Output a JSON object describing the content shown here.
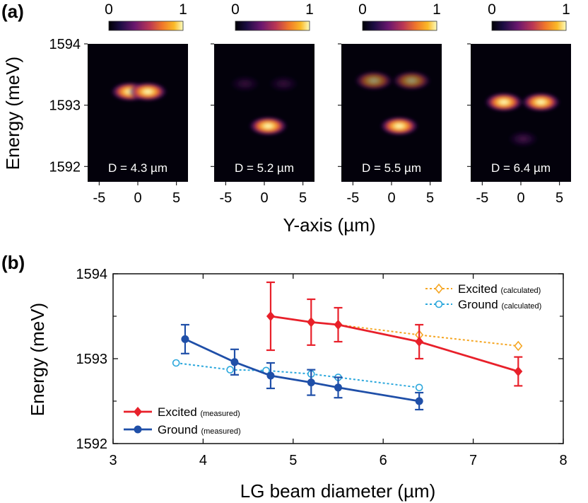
{
  "panel_labels": {
    "a": "(a)",
    "b": "(b)"
  },
  "panel_a": {
    "ylabel": "Energy (meV)",
    "xlabel": "Y-axis (µm)",
    "y_ticks": [
      "1594",
      "1593",
      "1592"
    ],
    "x_ticks": [
      "-5",
      "0",
      "5"
    ],
    "colorbar_ticks": [
      "0",
      "1"
    ],
    "maps": [
      {
        "label": "D = 4.3 µm",
        "spots": [
          {
            "y": -1.0,
            "e": 1593.22,
            "amp": 1.0
          },
          {
            "y": 1.3,
            "e": 1593.22,
            "amp": 1.0
          }
        ]
      },
      {
        "label": "D = 5.2 µm",
        "spots": [
          {
            "y": 0.5,
            "e": 1592.66,
            "amp": 1.0
          },
          {
            "y": -2.5,
            "e": 1593.35,
            "amp": 0.15
          },
          {
            "y": 2.5,
            "e": 1593.35,
            "amp": 0.15
          }
        ]
      },
      {
        "label": "D = 5.5 µm",
        "spots": [
          {
            "y": 1.0,
            "e": 1592.66,
            "amp": 1.0
          },
          {
            "y": -2.3,
            "e": 1593.4,
            "amp": 0.6
          },
          {
            "y": 2.6,
            "e": 1593.4,
            "amp": 0.6
          }
        ]
      },
      {
        "label": "D = 6.4 µm",
        "spots": [
          {
            "y": -2.2,
            "e": 1593.05,
            "amp": 1.0
          },
          {
            "y": 2.6,
            "e": 1593.05,
            "amp": 1.0
          },
          {
            "y": 0.3,
            "e": 1592.45,
            "amp": 0.2
          }
        ]
      }
    ]
  },
  "chart_data": {
    "type": "line",
    "xlabel": "LG beam diameter (µm)",
    "ylabel": "Energy (meV)",
    "xlim": [
      3,
      8
    ],
    "ylim": [
      1592,
      1594
    ],
    "x_ticks": [
      "3",
      "4",
      "5",
      "6",
      "7",
      "8"
    ],
    "y_ticks": [
      "1592",
      "1593",
      "1594"
    ],
    "legend_placement": [
      "top-right",
      "bottom-left"
    ],
    "series": [
      {
        "name": "Excited",
        "name_suffix": "(measured)",
        "color": "#e8202a",
        "marker": "diamond",
        "line": "solid",
        "x": [
          4.75,
          5.2,
          5.5,
          6.4,
          7.5
        ],
        "y": [
          1593.5,
          1593.43,
          1593.4,
          1593.2,
          1592.85
        ],
        "err": [
          0.4,
          0.27,
          0.2,
          0.2,
          0.17
        ]
      },
      {
        "name": "Ground",
        "name_suffix": "(measured)",
        "color": "#1f4fa8",
        "marker": "circle",
        "line": "solid",
        "x": [
          3.8,
          4.35,
          4.75,
          5.2,
          5.5,
          6.4
        ],
        "y": [
          1593.23,
          1592.96,
          1592.8,
          1592.72,
          1592.66,
          1592.5
        ],
        "err": [
          0.17,
          0.15,
          0.15,
          0.15,
          0.12,
          0.1
        ]
      },
      {
        "name": "Excited",
        "name_suffix": "(calculated)",
        "color": "#f5a623",
        "marker": "open-diamond",
        "line": "dotted",
        "x": [
          5.2,
          5.5,
          6.4,
          7.5
        ],
        "y": [
          1593.43,
          1593.4,
          1593.28,
          1593.15
        ]
      },
      {
        "name": "Ground",
        "name_suffix": "(calculated)",
        "color": "#2aa7dc",
        "marker": "open-circle",
        "line": "dotted",
        "x": [
          3.7,
          4.3,
          4.7,
          5.2,
          5.5,
          6.4
        ],
        "y": [
          1592.95,
          1592.87,
          1592.86,
          1592.82,
          1592.78,
          1592.66
        ]
      }
    ]
  }
}
